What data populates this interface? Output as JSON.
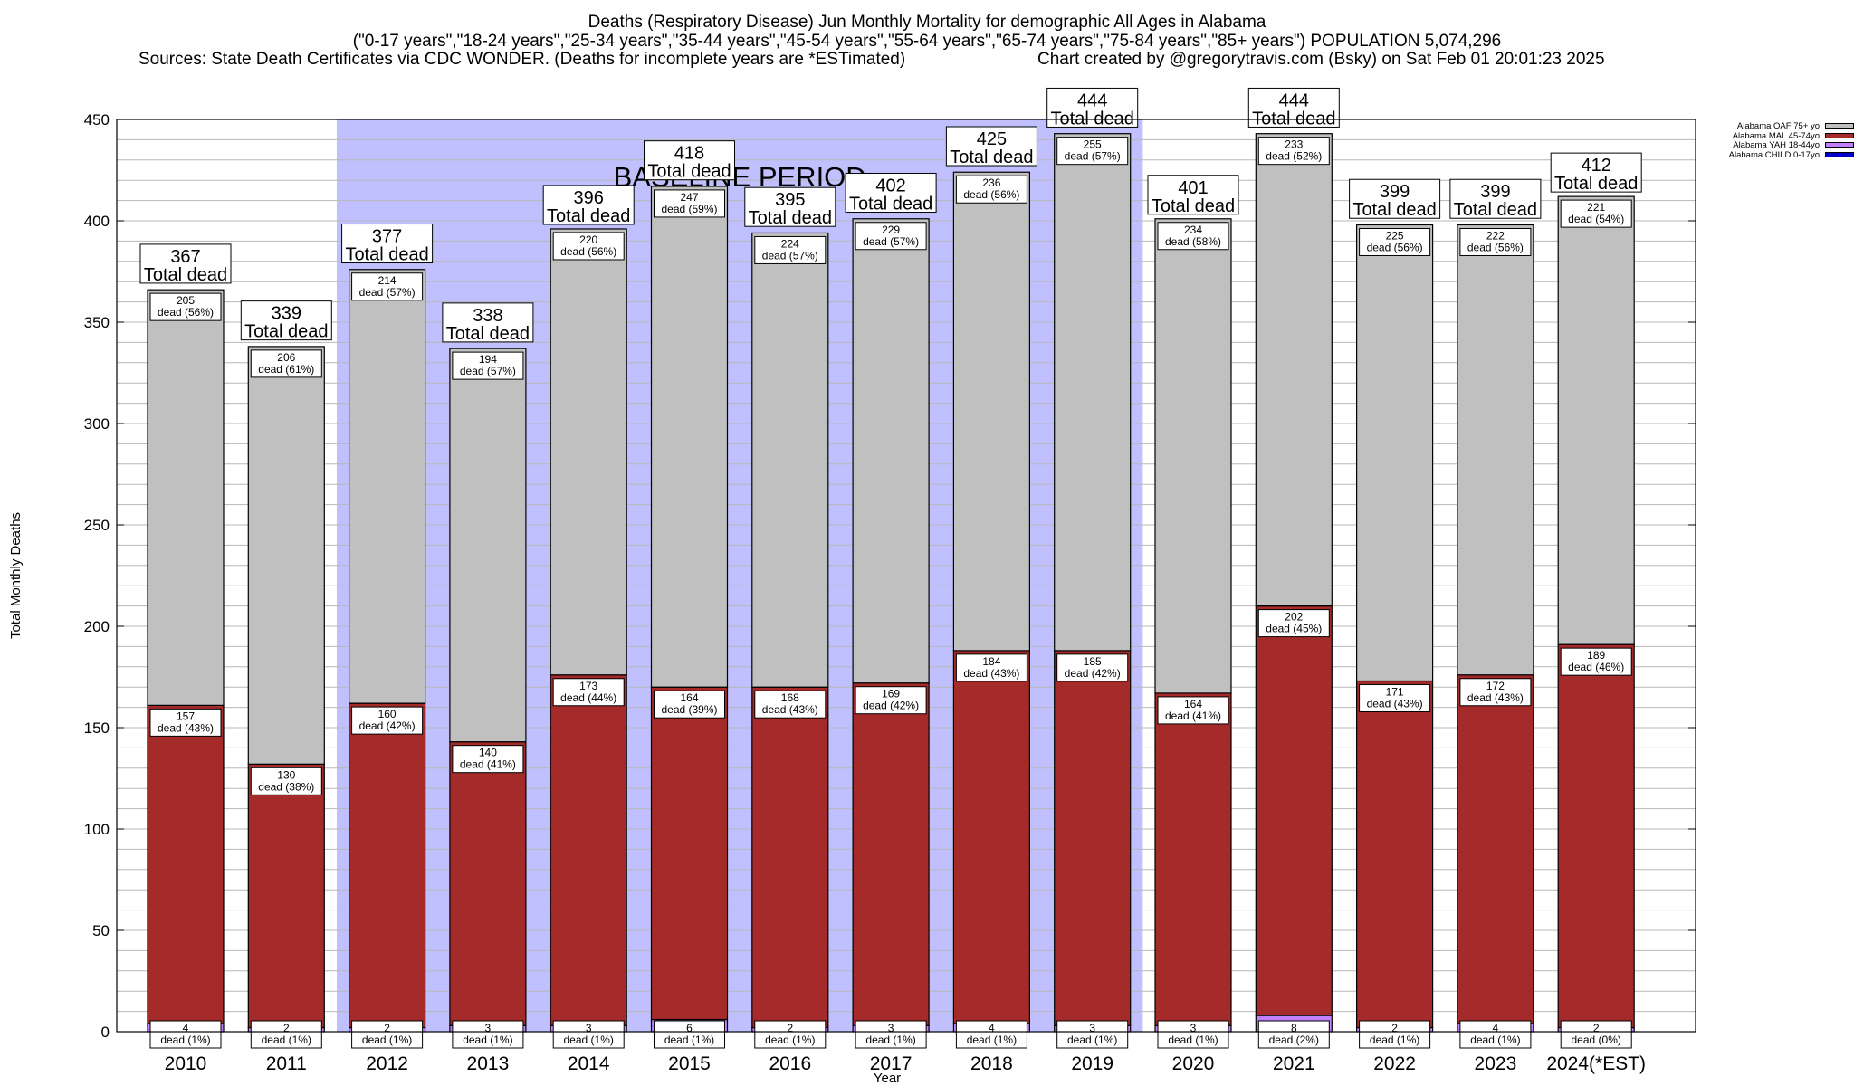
{
  "titles": {
    "line1": "Deaths (Respiratory Disease) Jun Monthly Mortality for demographic All Ages in Alabama",
    "line2": "(\"0-17 years\",\"18-24 years\",\"25-34 years\",\"35-44 years\",\"45-54 years\",\"55-64 years\",\"65-74 years\",\"75-84 years\",\"85+ years\") POPULATION 5,074,296",
    "line3_left": "Sources: State Death Certificates via CDC WONDER. (Deaths for incomplete years are *ESTimated)",
    "line3_right": "Chart created by @gregorytravis.com (Bsky) on Sat Feb 01 20:01:23 2025"
  },
  "colors": {
    "oaf": "#c0c0c0",
    "mal": "#a52a2a",
    "yah": "#c080ff",
    "child": "#0000cd",
    "baseline": "#c0c0ff",
    "grid": "#b8b8b8"
  },
  "chart_data": {
    "type": "bar",
    "stacked": true,
    "title": "Deaths (Respiratory Disease) Jun Monthly Mortality for demographic All Ages in Alabama",
    "xlabel": "Year",
    "ylabel": "Total Monthly Deaths",
    "ylim": [
      0,
      450
    ],
    "yticks": [
      0,
      50,
      100,
      150,
      200,
      250,
      300,
      350,
      400,
      450
    ],
    "grid": true,
    "legend_position": "top-right",
    "categories": [
      "2010",
      "2011",
      "2012",
      "2013",
      "2014",
      "2015",
      "2016",
      "2017",
      "2018",
      "2019",
      "2020",
      "2021",
      "2022",
      "2023",
      "2024(*EST)"
    ],
    "baseline_period": {
      "label": "BASELINE PERIOD",
      "from": "2012",
      "to": "2019"
    },
    "series": [
      {
        "name": "Alabama CHILD 0-17yo",
        "values": [
          0,
          0,
          0,
          0,
          0,
          0,
          0,
          0,
          0,
          0,
          0,
          0,
          0,
          0,
          0
        ]
      },
      {
        "name": "Alabama YAH 18-44yo",
        "values": [
          4,
          2,
          2,
          3,
          3,
          6,
          2,
          3,
          4,
          3,
          3,
          8,
          2,
          4,
          2
        ],
        "labels": [
          "4 dead (1%)",
          "2 dead (1%)",
          "2 dead (1%)",
          "3 dead (1%)",
          "3 dead (1%)",
          "6 dead (1%)",
          "2 dead (1%)",
          "3 dead (1%)",
          "4 dead (1%)",
          "3 dead (1%)",
          "3 dead (1%)",
          "8 dead (2%)",
          "2 dead (1%)",
          "4 dead (1%)",
          "2 dead (0%)"
        ]
      },
      {
        "name": "Alabama MAL 45-74yo",
        "values": [
          157,
          130,
          160,
          140,
          173,
          164,
          168,
          169,
          184,
          185,
          164,
          202,
          171,
          172,
          189
        ],
        "labels": [
          "157 dead (43%)",
          "130 dead (38%)",
          "160 dead (42%)",
          "140 dead (41%)",
          "173 dead (44%)",
          "164 dead (39%)",
          "168 dead (43%)",
          "169 dead (42%)",
          "184 dead (43%)",
          "185 dead (42%)",
          "164 dead (41%)",
          "202 dead (45%)",
          "171 dead (43%)",
          "172 dead (43%)",
          "189 dead (46%)"
        ]
      },
      {
        "name": "Alabama OAF 75+ yo",
        "values": [
          205,
          206,
          214,
          194,
          220,
          247,
          224,
          229,
          236,
          255,
          234,
          233,
          225,
          222,
          221
        ],
        "labels": [
          "205 dead (56%)",
          "206 dead (61%)",
          "214 dead (57%)",
          "194 dead (57%)",
          "220 dead (56%)",
          "247 dead (59%)",
          "224 dead (57%)",
          "229 dead (57%)",
          "236 dead (56%)",
          "255 dead (57%)",
          "234 dead (58%)",
          "233 dead (52%)",
          "225 dead (56%)",
          "222 dead (56%)",
          "221 dead (54%)"
        ]
      }
    ],
    "totals": [
      367,
      339,
      377,
      338,
      396,
      418,
      395,
      402,
      425,
      444,
      401,
      444,
      399,
      399,
      412
    ],
    "total_label": "Total dead"
  },
  "legend": [
    {
      "label": "Alabama OAF 75+ yo",
      "color": "#c0c0c0"
    },
    {
      "label": "Alabama MAL 45-74yo",
      "color": "#a52a2a"
    },
    {
      "label": "Alabama YAH 18-44yo",
      "color": "#c080ff"
    },
    {
      "label": "Alabama CHILD 0-17yo",
      "color": "#0000cd"
    }
  ]
}
